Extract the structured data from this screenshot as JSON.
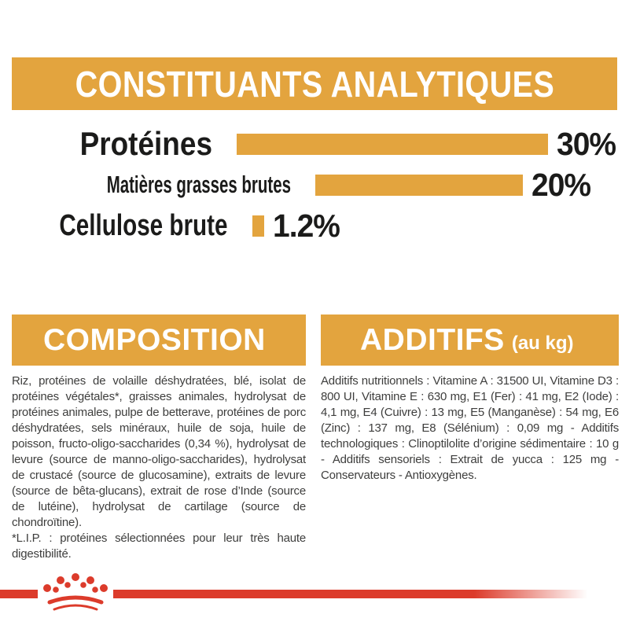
{
  "header": {
    "title": "CONSTITUANTS ANALYTIQUES"
  },
  "chart_data": {
    "type": "bar",
    "orientation": "horizontal",
    "title": "CONSTITUANTS ANALYTIQUES",
    "categories": [
      "Protéines",
      "Matières grasses brutes",
      "Cellulose brute"
    ],
    "values": [
      30,
      20,
      1.2
    ],
    "value_labels": [
      "30%",
      "20%",
      "1.2%"
    ],
    "xlim": [
      0,
      30
    ],
    "grid": false,
    "legend": "none",
    "bar_color": "#E3A43E",
    "label_color": "#1B1B1A"
  },
  "composition": {
    "title": "COMPOSITION",
    "body": "Riz, protéines de volaille déshydratées, blé, isolat de protéines végétales*, graisses animales, hydrolysat de protéines animales, pulpe de betterave, protéines de porc déshydratées, sels minéraux, huile de soja, huile de poisson, fructo-oligo-saccharides (0,34 %), hydrolysat de levure (source de manno-oligo-saccharides), hydrolysat de crustacé (source de glucosamine), extraits de levure (source de bêta-glucans), extrait de rose d’Inde (source de lutéine), hydrolysat de cartilage (source de chondroïtine).",
    "note": "*L.I.P. : protéines sélectionnées pour leur très haute digestibilité."
  },
  "additives": {
    "title": "ADDITIFS",
    "unit": "(au kg)",
    "body": "Additifs nutritionnels : Vitamine A : 31500 UI, Vitamine D3 : 800 UI, Vitamine E : 630 mg, E1 (Fer) : 41 mg, E2 (Iode) : 4,1 mg, E4 (Cuivre) : 13 mg, E5 (Manganèse) : 54 mg, E6 (Zinc) : 137 mg, E8 (Sélénium) : 0,09 mg - Additifs technologiques : Clinoptilolite d’origine sédimentaire : 10 g - Additifs sensoriels : Extrait de yucca : 125 mg - Conservateurs - Antioxygènes.",
    "footer_logo": "royal-canin-crown"
  },
  "colors": {
    "gold": "#E3A43E",
    "red": "#DC3B2B",
    "text_dark": "#3E3E3D",
    "text_black": "#1B1B1A",
    "background": "#FFFFFF"
  }
}
